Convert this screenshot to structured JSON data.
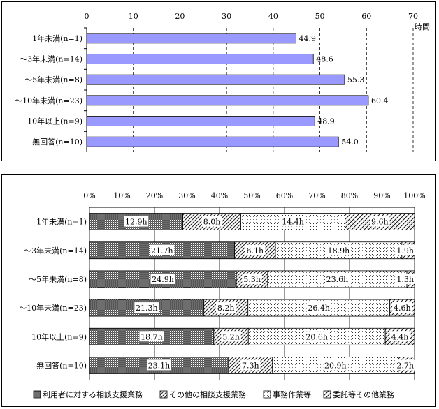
{
  "chart_data": [
    {
      "type": "bar",
      "orientation": "horizontal",
      "unit_label": "時間",
      "xlim": [
        0,
        70
      ],
      "xticks": [
        0,
        10,
        20,
        30,
        40,
        50,
        60,
        70
      ],
      "grid": "dashed vertical",
      "bar_color": "#9999ff",
      "categories": [
        "1年未満(n=1)",
        "～3年未満(n=14)",
        "～5年未満(n=8)",
        "～10年未満(n=23)",
        "10年以上(n=9)",
        "無回答(n=10)"
      ],
      "values": [
        44.9,
        48.6,
        55.3,
        60.4,
        48.9,
        54.0
      ],
      "value_labels": [
        "44.9",
        "48.6",
        "55.3",
        "60.4",
        "48.9",
        "54.0"
      ]
    },
    {
      "type": "bar",
      "orientation": "horizontal",
      "stacked": "percent",
      "xlim": [
        0,
        100
      ],
      "xtick_labels": [
        "0%",
        "10%",
        "20%",
        "30%",
        "40%",
        "50%",
        "60%",
        "70%",
        "80%",
        "90%",
        "100%"
      ],
      "grid": "solid vertical",
      "legend_position": "bottom",
      "categories": [
        "1年未満(n=1)",
        "～3年未満(n=14)",
        "～5年未満(n=8)",
        "～10年未満(n=23)",
        "10年以上(n=9)",
        "無回答(n=10)"
      ],
      "series": [
        {
          "name": "利用者に対する相談支援業務",
          "pattern": "dense-dots",
          "values": [
            12.9,
            21.7,
            24.9,
            21.3,
            18.7,
            23.1
          ],
          "labels": [
            "12.9h",
            "21.7h",
            "24.9h",
            "21.3h",
            "18.7h",
            "23.1h"
          ]
        },
        {
          "name": "その他の相談支援業務",
          "pattern": "diagonal-lines",
          "values": [
            8.0,
            6.1,
            5.3,
            8.2,
            5.2,
            7.3
          ],
          "labels": [
            "8.0h",
            "6.1h",
            "5.3h",
            "8.2h",
            "5.2h",
            "7.3h"
          ]
        },
        {
          "name": "事務作業等",
          "pattern": "sparse-dots",
          "values": [
            14.4,
            18.9,
            23.6,
            26.4,
            20.6,
            20.9
          ],
          "labels": [
            "14.4h",
            "18.9h",
            "23.6h",
            "26.4h",
            "20.6h",
            "20.9h"
          ]
        },
        {
          "name": "委託等その他業務",
          "pattern": "hatch",
          "values": [
            9.6,
            1.9,
            1.3,
            4.6,
            4.4,
            2.7
          ],
          "labels": [
            "9.6h",
            "1.9h",
            "1.3h",
            "4.6h",
            "4.4h",
            "2.7h"
          ]
        }
      ]
    }
  ]
}
